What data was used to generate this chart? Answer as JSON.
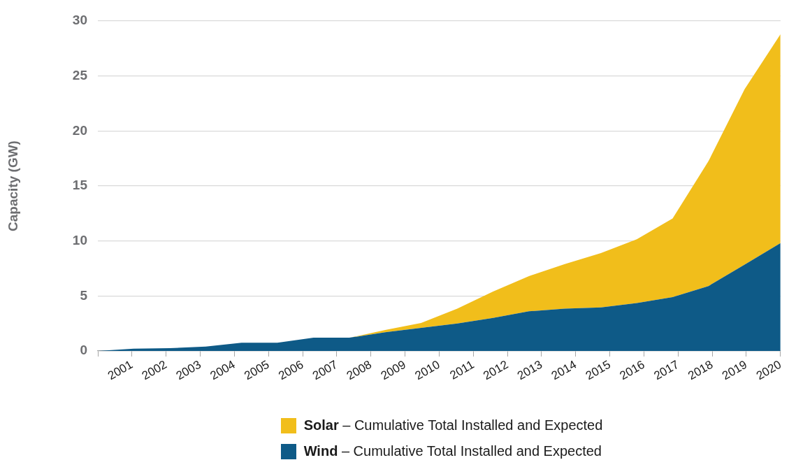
{
  "chart_data": {
    "type": "area",
    "stacked": true,
    "ylabel": "Capacity (GW)",
    "x": [
      2000,
      2001.05,
      2002.11,
      2003.16,
      2004.21,
      2005.26,
      2006.32,
      2007.37,
      2008.42,
      2009.47,
      2010.53,
      2011.58,
      2012.63,
      2013.68,
      2014.74,
      2015.79,
      2016.84,
      2017.89,
      2018.95,
      2020
    ],
    "xlim": [
      2000,
      2020
    ],
    "xticks": [
      {
        "value": 2000,
        "label": null
      },
      2001,
      2002,
      2003,
      2004,
      2005,
      2006,
      2007,
      2008,
      2009,
      2010,
      2011,
      2012,
      2013,
      2014,
      2015,
      2016,
      2017,
      2018,
      2019,
      2020
    ],
    "ylim": [
      0,
      30
    ],
    "yticks": [
      0,
      5,
      10,
      15,
      20,
      25,
      30
    ],
    "grid": "y",
    "legend": "bottom",
    "series": [
      {
        "name": "Wind – Cumulative Total Installed and Expected",
        "color": "#0e5a87",
        "values": [
          0,
          0.2,
          0.25,
          0.4,
          0.75,
          0.75,
          1.2,
          1.2,
          1.7,
          2.1,
          2.5,
          3.0,
          3.6,
          3.85,
          3.95,
          4.35,
          4.9,
          5.9,
          7.85,
          9.8
        ]
      },
      {
        "name": "Solar – Cumulative Total Installed and Expected",
        "color": "#f1be1b",
        "values": [
          0,
          0,
          0,
          0,
          0,
          0,
          0,
          0,
          0.2,
          0.45,
          1.35,
          2.4,
          3.2,
          4.05,
          4.95,
          5.8,
          7.15,
          11.35,
          15.95,
          19.0
        ]
      }
    ]
  }
}
